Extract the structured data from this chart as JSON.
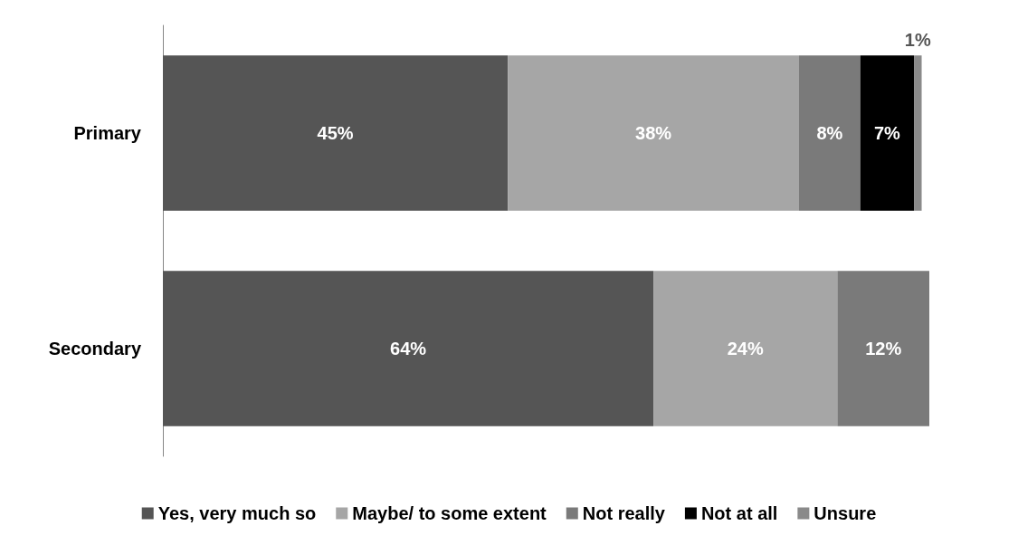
{
  "chart_data": {
    "type": "bar",
    "orientation": "horizontal",
    "stacked": true,
    "legend": "bottom",
    "categories": [
      "Primary",
      "Secondary"
    ],
    "series": [
      {
        "name": "Yes, very much so",
        "color": "#555555",
        "values": [
          45,
          64
        ],
        "value_labels": [
          "45%",
          "64%"
        ]
      },
      {
        "name": "Maybe/ to some extent",
        "color": "#a6a6a6",
        "values": [
          38,
          24
        ],
        "value_labels": [
          "38%",
          "24%"
        ]
      },
      {
        "name": "Not really",
        "color": "#7a7a7a",
        "values": [
          8,
          12
        ],
        "value_labels": [
          "8%",
          "12%"
        ]
      },
      {
        "name": "Not at all",
        "color": "#000000",
        "values": [
          7,
          null
        ],
        "value_labels": [
          "7%",
          null
        ]
      },
      {
        "name": "Unsure",
        "color": "#8a8a8a",
        "values": [
          1,
          null
        ],
        "value_labels": [
          "1%",
          null
        ]
      }
    ]
  }
}
